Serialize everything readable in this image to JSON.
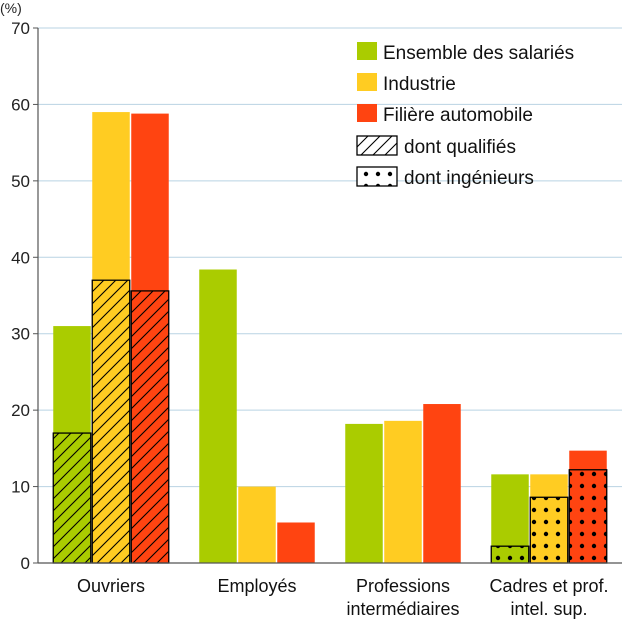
{
  "chart_data": {
    "type": "bar",
    "ylabel": "(%)",
    "ylim": [
      0,
      70
    ],
    "yticks": [
      0,
      10,
      20,
      30,
      40,
      50,
      60,
      70
    ],
    "grid": true,
    "legend_position": "top-right",
    "categories": [
      [
        "Ouvriers"
      ],
      [
        "Employés"
      ],
      [
        "Professions",
        "intermédiaires"
      ],
      [
        "Cadres et prof.",
        "intel. sup."
      ]
    ],
    "series": [
      {
        "name": "Ensemble des salariés",
        "color": "#aacc00",
        "values": [
          31.0,
          38.4,
          18.2,
          11.6
        ],
        "sub_values": [
          17.0,
          null,
          null,
          2.2
        ]
      },
      {
        "name": "Industrie",
        "color": "#ffcc22",
        "values": [
          59.0,
          10.0,
          18.6,
          11.6
        ],
        "sub_values": [
          37.0,
          null,
          null,
          8.6
        ]
      },
      {
        "name": "Filière automobile",
        "color": "#ff4411",
        "values": [
          58.8,
          5.3,
          20.8,
          14.7
        ],
        "sub_values": [
          35.6,
          null,
          null,
          12.2
        ]
      }
    ],
    "sub_legend": [
      {
        "name": "dont qualifiés",
        "pattern": "hatch",
        "applies_to_category": 0
      },
      {
        "name": "dont ingénieurs",
        "pattern": "dots",
        "applies_to_category": 3
      }
    ]
  }
}
